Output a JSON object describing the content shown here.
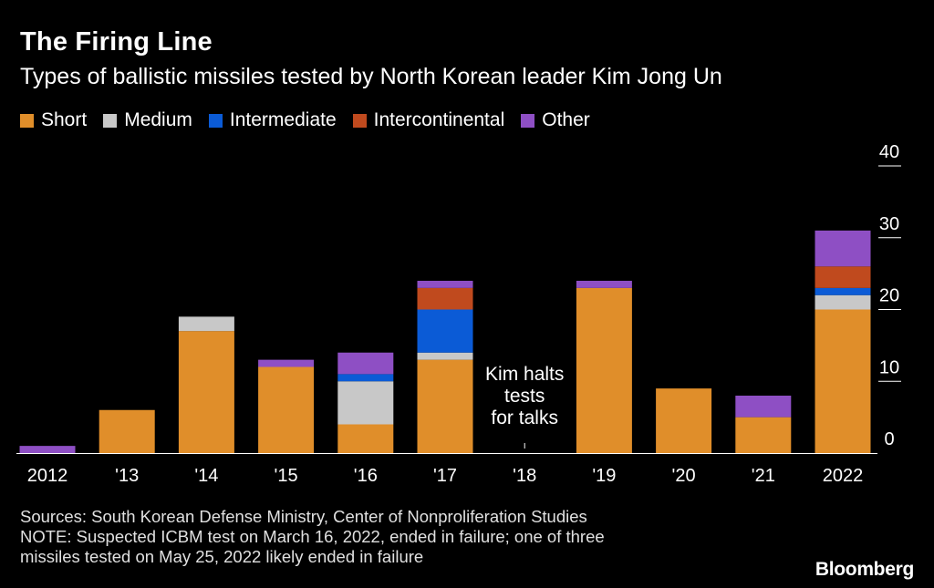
{
  "chart_data": {
    "type": "bar",
    "stacked": true,
    "title": "The Firing Line",
    "subtitle": "Types of ballistic missiles tested by North Korean leader Kim Jong Un",
    "categories": [
      "2012",
      "'13",
      "'14",
      "'15",
      "'16",
      "'17",
      "'18",
      "'19",
      "'20",
      "'21",
      "2022"
    ],
    "series": [
      {
        "name": "Short",
        "color": "#e08e2a",
        "values": [
          0,
          6,
          17,
          12,
          4,
          13,
          0,
          23,
          9,
          5,
          20
        ]
      },
      {
        "name": "Medium",
        "color": "#c8c8c8",
        "values": [
          0,
          0,
          2,
          0,
          6,
          1,
          0,
          0,
          0,
          0,
          2
        ]
      },
      {
        "name": "Intermediate",
        "color": "#0b5bd6",
        "values": [
          0,
          0,
          0,
          0,
          1,
          6,
          0,
          0,
          0,
          0,
          1
        ]
      },
      {
        "name": "Intercontinental",
        "color": "#c04a1e",
        "values": [
          0,
          0,
          0,
          0,
          0,
          3,
          0,
          0,
          0,
          0,
          3
        ]
      },
      {
        "name": "Other",
        "color": "#8e4fc4",
        "values": [
          1,
          0,
          0,
          1,
          3,
          1,
          0,
          1,
          0,
          3,
          5
        ]
      }
    ],
    "ylim": [
      0,
      40
    ],
    "yticks": [
      0,
      10,
      20,
      30,
      40
    ],
    "axis_side": "right",
    "legend_placement": "top-left",
    "annotation": {
      "text": [
        "Kim halts",
        "tests",
        "for talks"
      ],
      "category": "'18"
    }
  },
  "footer": {
    "sources": "Sources: South Korean Defense Ministry, Center of Nonproliferation Studies",
    "note1": "NOTE: Suspected ICBM test on March 16, 2022, ended in failure; one of three",
    "note2": "missiles tested on May 25, 2022 likely ended in failure"
  },
  "brand": "Bloomberg"
}
